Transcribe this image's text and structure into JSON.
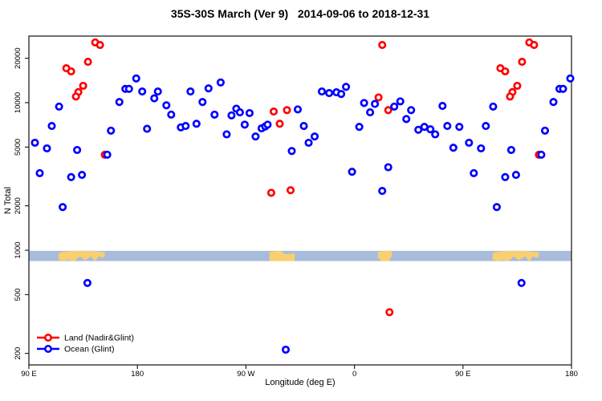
{
  "title": "35S-30S March (Ver 9)   2014-09-06 to 2018-12-31",
  "legend": {
    "items": [
      {
        "label": "Land (Nadir&Glint)",
        "color": "#ff0000",
        "marker": "open-circle-with-line"
      },
      {
        "label": "Ocean (Glint)",
        "color": "#0000ff",
        "marker": "open-circle-with-line"
      }
    ]
  },
  "chart_data": {
    "type": "scatter",
    "title": "35S-30S March (Ver 9)   2014-09-06 to 2018-12-31",
    "xlabel": "Longitude (deg E)",
    "ylabel": "N Total",
    "x_axis": {
      "tick_labels": [
        "90 E",
        "180",
        "90 W",
        "0",
        "90 E",
        "180"
      ],
      "tick_lons": [
        90,
        180,
        270,
        360,
        450,
        540
      ],
      "lon_range": [
        90,
        540
      ],
      "note": "longitude axis wraps: points and land with lon 90E-180E are drawn at both ends"
    },
    "y_axis": {
      "scale": "log",
      "tick_values": [
        200,
        500,
        1000,
        2000,
        5000,
        10000,
        20000
      ],
      "tick_labels": [
        "200",
        "500",
        "1000",
        "2000",
        "5000",
        "10000",
        "20000"
      ],
      "tick_labels_rotated": true
    },
    "map_band": {
      "ocean_color": "#a7bcda",
      "land_color": "#f9cf6f",
      "n_range": [
        845,
        990
      ],
      "land_patches": [
        {
          "name": "australia",
          "lon": [
            114.5,
            153
          ]
        },
        {
          "name": "south-america",
          "lon": [
            289.5,
            310.5
          ]
        },
        {
          "name": "south-africa",
          "lon": [
            19.5,
            31
          ]
        }
      ]
    },
    "series": [
      {
        "name": "Land (Nadir&Glint)",
        "color": "#ff0000",
        "points": [
          [
            145,
            25600
          ],
          [
            149,
            24600
          ],
          [
            139,
            18900
          ],
          [
            121,
            17100
          ],
          [
            125,
            16300
          ],
          [
            135,
            13000
          ],
          [
            131,
            11800
          ],
          [
            129,
            11000
          ],
          [
            153,
            4440
          ],
          [
            293,
            8700
          ],
          [
            304,
            8900
          ],
          [
            298,
            7200
          ],
          [
            291,
            2450
          ],
          [
            307,
            2550
          ],
          [
            23,
            24600
          ],
          [
            20,
            10850
          ],
          [
            28,
            8900
          ],
          [
            29,
            380
          ]
        ]
      },
      {
        "name": "Ocean (Glint)",
        "color": "#0000ff",
        "points": [
          [
            95,
            5350
          ],
          [
            99,
            3330
          ],
          [
            105,
            4900
          ],
          [
            109,
            6950
          ],
          [
            115,
            9400
          ],
          [
            118,
            1960
          ],
          [
            125,
            3130
          ],
          [
            130,
            4780
          ],
          [
            134,
            3240
          ],
          [
            138.5,
            600
          ],
          [
            155,
            4440
          ],
          [
            158,
            6460
          ],
          [
            165,
            10100
          ],
          [
            170,
            12400
          ],
          [
            173,
            12400
          ],
          [
            179,
            14600
          ],
          [
            184,
            11900
          ],
          [
            188,
            6650
          ],
          [
            194,
            10700
          ],
          [
            197,
            11900
          ],
          [
            204,
            9600
          ],
          [
            208,
            8300
          ],
          [
            216,
            6800
          ],
          [
            220,
            6950
          ],
          [
            224,
            11900
          ],
          [
            229,
            7200
          ],
          [
            234,
            10100
          ],
          [
            239,
            12500
          ],
          [
            244,
            8300
          ],
          [
            249,
            13700
          ],
          [
            254,
            6100
          ],
          [
            258,
            8200
          ],
          [
            262,
            9100
          ],
          [
            265,
            8600
          ],
          [
            269,
            7100
          ],
          [
            273,
            8500
          ],
          [
            278,
            5900
          ],
          [
            283,
            6700
          ],
          [
            286,
            6900
          ],
          [
            288,
            7100
          ],
          [
            303,
            212
          ],
          [
            308,
            4700
          ],
          [
            313,
            9000
          ],
          [
            318,
            6950
          ],
          [
            322,
            5350
          ],
          [
            327,
            5900
          ],
          [
            333,
            11900
          ],
          [
            339,
            11600
          ],
          [
            345,
            11750
          ],
          [
            349,
            11450
          ],
          [
            353,
            12800
          ],
          [
            358,
            3400
          ],
          [
            4,
            6850
          ],
          [
            8,
            9950
          ],
          [
            13,
            8600
          ],
          [
            17,
            9800
          ],
          [
            23,
            2520
          ],
          [
            28,
            3650
          ],
          [
            33,
            9400
          ],
          [
            38,
            10200
          ],
          [
            43,
            7750
          ],
          [
            47,
            8900
          ],
          [
            53,
            6550
          ],
          [
            58,
            6850
          ],
          [
            63,
            6600
          ],
          [
            67,
            6100
          ],
          [
            73,
            9500
          ],
          [
            77,
            6950
          ],
          [
            82,
            4950
          ],
          [
            87,
            6850
          ]
        ]
      }
    ]
  }
}
